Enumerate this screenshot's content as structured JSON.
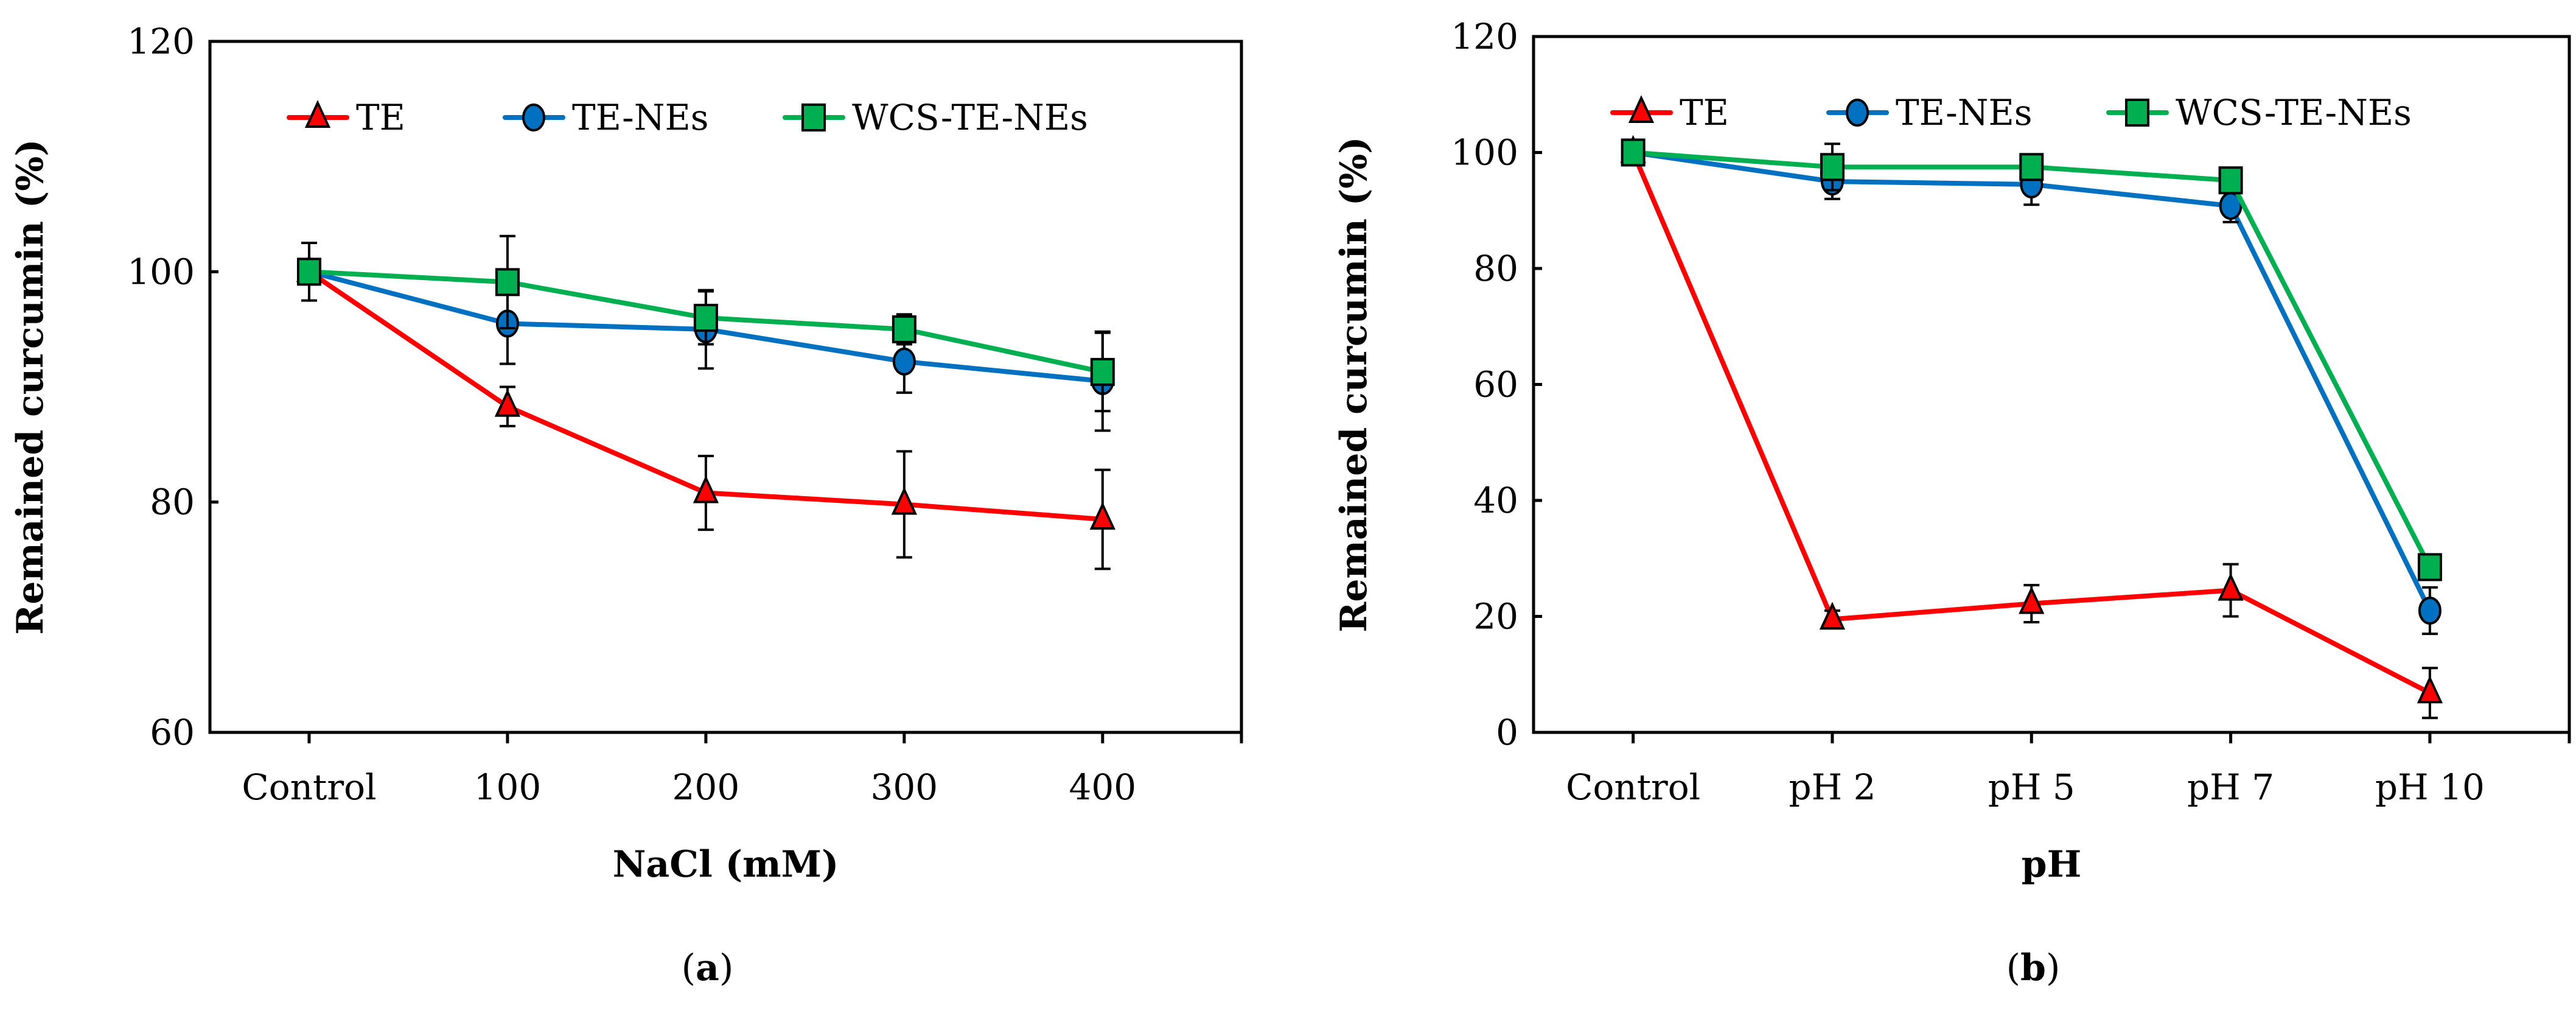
{
  "chart_data": [
    {
      "type": "line",
      "panel": "a",
      "caption_letter": "a",
      "xlabel": "NaCl (mM)",
      "ylabel": "Remained curcumin (%)",
      "categories": [
        "Control",
        "100",
        "200",
        "300",
        "400"
      ],
      "ylim": [
        60,
        120
      ],
      "yticks": [
        60,
        80,
        100,
        120
      ],
      "legend_position": "top",
      "series": [
        {
          "name": "TE",
          "color": "#ff0000",
          "marker": "triangle",
          "values": [
            100,
            88.3,
            80.8,
            79.8,
            78.5
          ],
          "errors": [
            2.5,
            1.7,
            3.2,
            4.6,
            4.3
          ]
        },
        {
          "name": "TE-NEs",
          "color": "#0070c0",
          "marker": "circle",
          "values": [
            100,
            95.5,
            95.0,
            92.2,
            90.5
          ],
          "errors": [
            0,
            3.5,
            3.4,
            2.7,
            4.3
          ]
        },
        {
          "name": "WCS-TE-NEs",
          "color": "#00b050",
          "marker": "square",
          "values": [
            100,
            99.1,
            96.0,
            95.0,
            91.3
          ],
          "errors": [
            0,
            4.0,
            2.3,
            1.3,
            3.4
          ]
        }
      ]
    },
    {
      "type": "line",
      "panel": "b",
      "caption_letter": "b",
      "xlabel": "pH",
      "ylabel": "Remained curcumin (%)",
      "categories": [
        "Control",
        "pH 2",
        "pH 5",
        "pH 7",
        "pH 10"
      ],
      "ylim": [
        0,
        120
      ],
      "yticks": [
        0,
        20,
        40,
        60,
        80,
        100,
        120
      ],
      "legend_position": "top",
      "series": [
        {
          "name": "TE",
          "color": "#ff0000",
          "marker": "triangle",
          "values": [
            100,
            19.5,
            22.2,
            24.5,
            6.8
          ],
          "errors": [
            2.0,
            1.5,
            3.2,
            4.5,
            4.3
          ]
        },
        {
          "name": "TE-NEs",
          "color": "#0070c0",
          "marker": "circle",
          "values": [
            100,
            95.0,
            94.5,
            90.8,
            21.0
          ],
          "errors": [
            0,
            3.0,
            3.5,
            2.8,
            4.0
          ]
        },
        {
          "name": "WCS-TE-NEs",
          "color": "#00b050",
          "marker": "square",
          "values": [
            100,
            97.5,
            97.5,
            95.2,
            28.5
          ],
          "errors": [
            2.0,
            4.0,
            1.0,
            1.0,
            1.0
          ]
        }
      ]
    }
  ]
}
